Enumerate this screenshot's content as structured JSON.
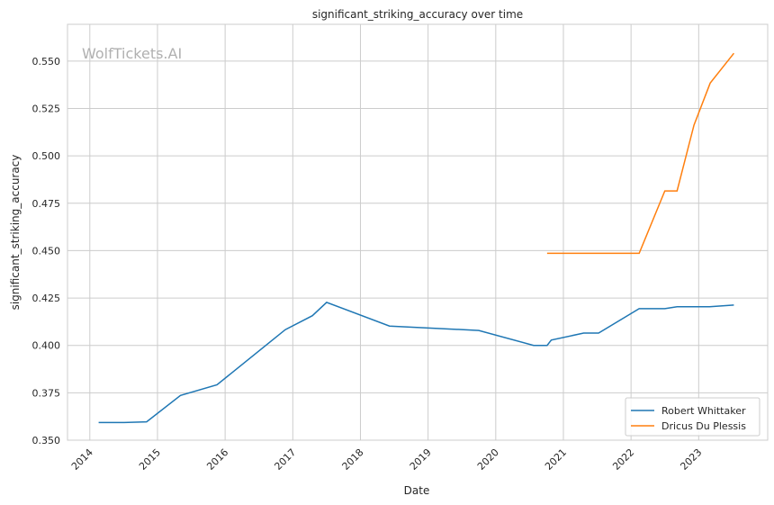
{
  "chart_data": {
    "type": "line",
    "title": "significant_striking_accuracy over time",
    "xlabel": "Date",
    "ylabel": "significant_striking_accuracy",
    "watermark": "WolfTickets.AI",
    "xlim": [
      2013.67,
      2024.02
    ],
    "ylim": [
      0.35,
      0.5694
    ],
    "x_ticks": [
      2014,
      2015,
      2016,
      2017,
      2018,
      2019,
      2020,
      2021,
      2022,
      2023
    ],
    "x_tick_labels": [
      "2014",
      "2015",
      "2016",
      "2017",
      "2018",
      "2019",
      "2020",
      "2021",
      "2022",
      "2023"
    ],
    "y_ticks": [
      0.35,
      0.375,
      0.4,
      0.425,
      0.45,
      0.475,
      0.5,
      0.525,
      0.55
    ],
    "y_tick_labels": [
      "0.350",
      "0.375",
      "0.400",
      "0.425",
      "0.450",
      "0.475",
      "0.500",
      "0.525",
      "0.550"
    ],
    "grid": true,
    "legend_position": "bottom-right",
    "series": [
      {
        "name": "Robert Whittaker",
        "color": "#1f77b4",
        "x": [
          2014.13,
          2014.51,
          2014.84,
          2015.34,
          2015.88,
          2016.89,
          2017.29,
          2017.5,
          2018.43,
          2019.75,
          2020.56,
          2020.76,
          2020.82,
          2021.3,
          2021.52,
          2022.12,
          2022.5,
          2022.68,
          2023.16,
          2023.52
        ],
        "y": [
          0.3593,
          0.3593,
          0.3597,
          0.3736,
          0.3792,
          0.4083,
          0.4157,
          0.4227,
          0.4102,
          0.4079,
          0.4,
          0.4,
          0.4028,
          0.4065,
          0.4065,
          0.4194,
          0.4194,
          0.4204,
          0.4204,
          0.4213
        ]
      },
      {
        "name": "Dricus Du Plessis",
        "color": "#ff7f0e",
        "x": [
          2020.76,
          2022.12,
          2022.5,
          2022.68,
          2022.93,
          2023.17,
          2023.52
        ],
        "y": [
          0.4486,
          0.4486,
          0.4815,
          0.4815,
          0.5162,
          0.5384,
          0.5541
        ]
      }
    ]
  }
}
